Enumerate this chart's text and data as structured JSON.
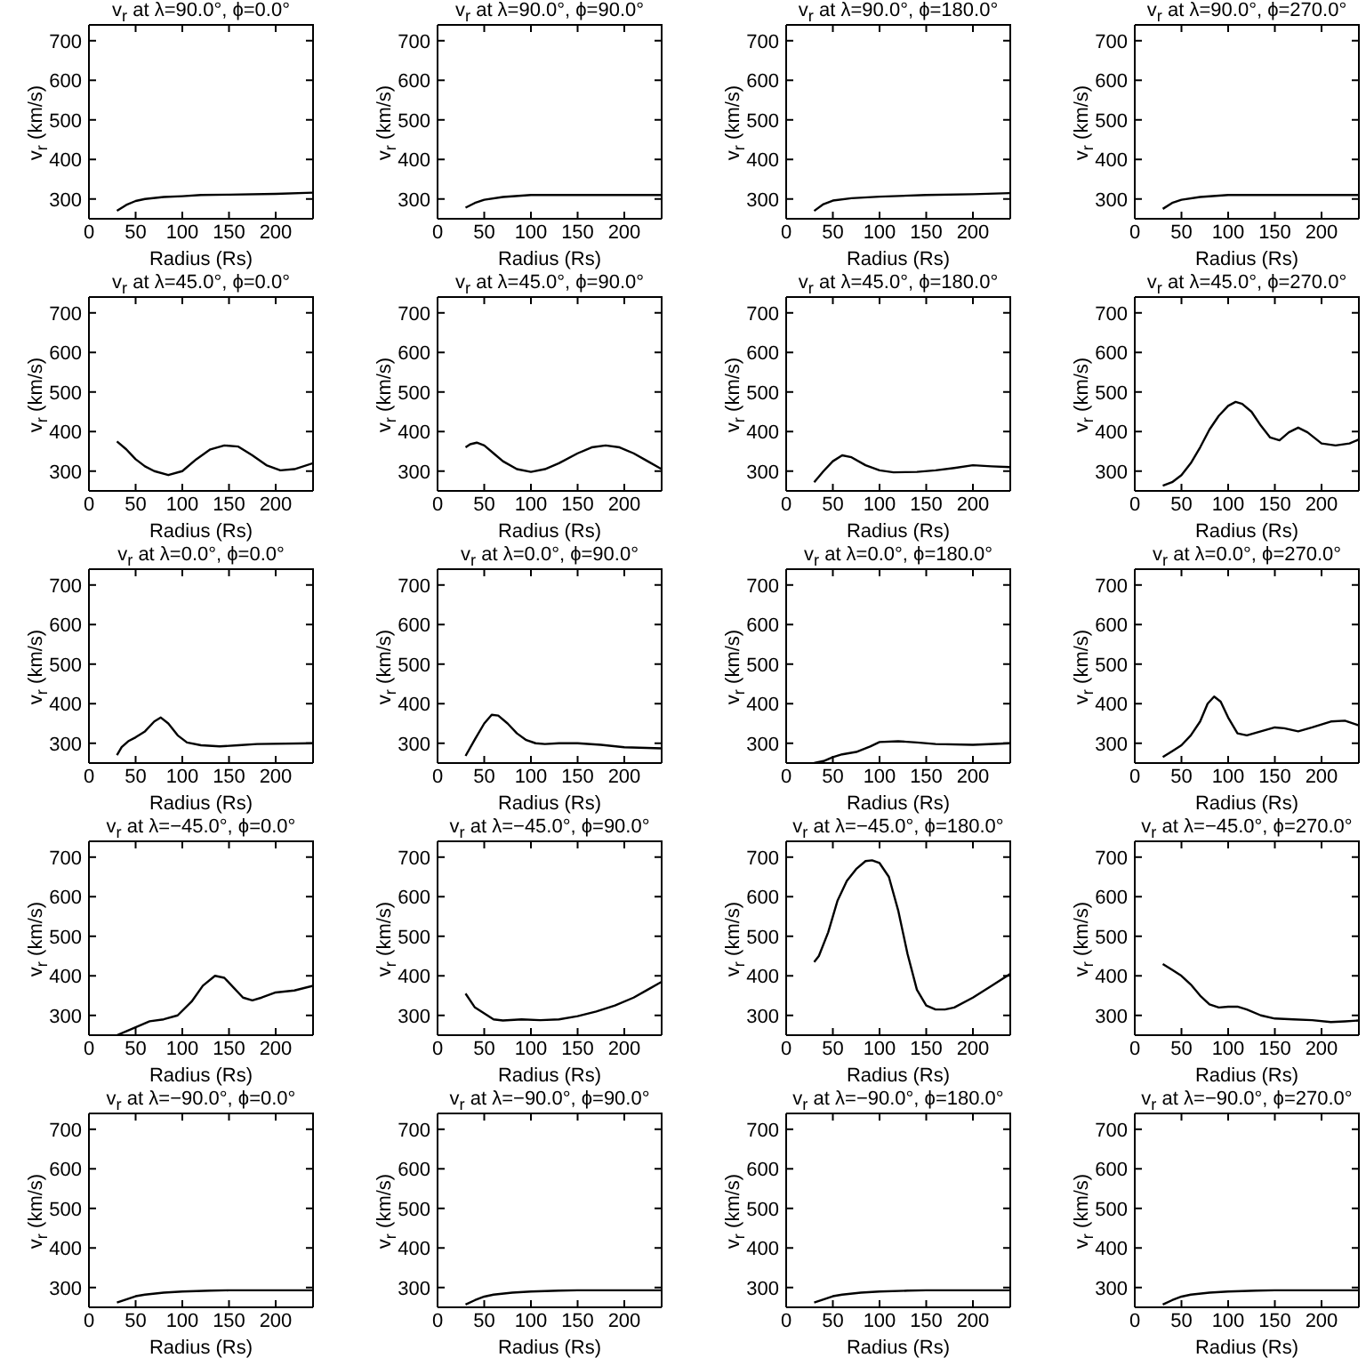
{
  "chart_data": [
    {
      "type": "line",
      "title": "v$_{r}$ at λ=90.0°, ϕ=0.0°",
      "xlabel": "Radius (Rs)",
      "ylabel": "v$_{r}$ (km/s)",
      "color": "#000000",
      "xlim": [
        0,
        240
      ],
      "ylim": [
        250,
        740
      ],
      "xticks": [
        0,
        50,
        100,
        150,
        200
      ],
      "yticks": [
        300,
        400,
        500,
        600,
        700
      ],
      "x": [
        30,
        40,
        50,
        60,
        80,
        100,
        120,
        150,
        200,
        240
      ],
      "values": [
        270,
        285,
        295,
        300,
        305,
        307,
        310,
        311,
        313,
        316
      ]
    },
    {
      "type": "line",
      "title": "v$_{r}$ at λ=90.0°, ϕ=90.0°",
      "xlabel": "Radius (Rs)",
      "ylabel": "v$_{r}$ (km/s)",
      "color": "#000000",
      "xlim": [
        0,
        240
      ],
      "ylim": [
        250,
        740
      ],
      "xticks": [
        0,
        50,
        100,
        150,
        200
      ],
      "yticks": [
        300,
        400,
        500,
        600,
        700
      ],
      "x": [
        30,
        40,
        50,
        70,
        100,
        150,
        240
      ],
      "values": [
        278,
        290,
        298,
        305,
        310,
        310,
        310
      ]
    },
    {
      "type": "line",
      "title": "v$_{r}$ at λ=90.0°, ϕ=180.0°",
      "xlabel": "Radius (Rs)",
      "ylabel": "v$_{r}$ (km/s)",
      "color": "#000000",
      "xlim": [
        0,
        240
      ],
      "ylim": [
        250,
        740
      ],
      "xticks": [
        0,
        50,
        100,
        150,
        200
      ],
      "yticks": [
        300,
        400,
        500,
        600,
        700
      ],
      "x": [
        30,
        40,
        50,
        70,
        100,
        150,
        200,
        240
      ],
      "values": [
        270,
        287,
        296,
        302,
        306,
        310,
        312,
        315
      ]
    },
    {
      "type": "line",
      "title": "v$_{r}$ at λ=90.0°, ϕ=270.0°",
      "xlabel": "Radius (Rs)",
      "ylabel": "v$_{r}$ (km/s)",
      "color": "#000000",
      "xlim": [
        0,
        240
      ],
      "ylim": [
        250,
        740
      ],
      "xticks": [
        0,
        50,
        100,
        150,
        200
      ],
      "yticks": [
        300,
        400,
        500,
        600,
        700
      ],
      "x": [
        30,
        40,
        50,
        70,
        100,
        240
      ],
      "values": [
        275,
        290,
        298,
        305,
        310,
        310
      ]
    },
    {
      "type": "line",
      "title": "v$_{r}$ at λ=45.0°, ϕ=0.0°",
      "xlabel": "Radius (Rs)",
      "ylabel": "v$_{r}$ (km/s)",
      "color": "#000000",
      "xlim": [
        0,
        240
      ],
      "ylim": [
        250,
        740
      ],
      "xticks": [
        0,
        50,
        100,
        150,
        200
      ],
      "yticks": [
        300,
        400,
        500,
        600,
        700
      ],
      "x": [
        30,
        40,
        50,
        60,
        70,
        85,
        100,
        115,
        130,
        145,
        160,
        175,
        190,
        205,
        220,
        240
      ],
      "values": [
        375,
        355,
        330,
        312,
        300,
        290,
        300,
        330,
        355,
        365,
        362,
        340,
        315,
        302,
        305,
        320
      ]
    },
    {
      "type": "line",
      "title": "v$_{r}$ at λ=45.0°, ϕ=90.0°",
      "xlabel": "Radius (Rs)",
      "ylabel": "v$_{r}$ (km/s)",
      "color": "#000000",
      "xlim": [
        0,
        240
      ],
      "ylim": [
        250,
        740
      ],
      "xticks": [
        0,
        50,
        100,
        150,
        200
      ],
      "yticks": [
        300,
        400,
        500,
        600,
        700
      ],
      "x": [
        30,
        35,
        42,
        50,
        60,
        70,
        85,
        100,
        115,
        130,
        150,
        165,
        180,
        195,
        210,
        225,
        240
      ],
      "values": [
        360,
        368,
        372,
        365,
        345,
        325,
        305,
        298,
        305,
        320,
        345,
        360,
        365,
        360,
        345,
        325,
        305
      ]
    },
    {
      "type": "line",
      "title": "v$_{r}$ at λ=45.0°, ϕ=180.0°",
      "xlabel": "Radius (Rs)",
      "ylabel": "v$_{r}$ (km/s)",
      "color": "#000000",
      "xlim": [
        0,
        240
      ],
      "ylim": [
        250,
        740
      ],
      "xticks": [
        0,
        50,
        100,
        150,
        200
      ],
      "yticks": [
        300,
        400,
        500,
        600,
        700
      ],
      "x": [
        30,
        40,
        50,
        60,
        70,
        85,
        100,
        115,
        140,
        160,
        180,
        200,
        220,
        240
      ],
      "values": [
        272,
        300,
        325,
        340,
        335,
        315,
        302,
        297,
        298,
        302,
        308,
        315,
        312,
        310
      ]
    },
    {
      "type": "line",
      "title": "v$_{r}$ at λ=45.0°, ϕ=270.0°",
      "xlabel": "Radius (Rs)",
      "ylabel": "v$_{r}$ (km/s)",
      "color": "#000000",
      "xlim": [
        0,
        240
      ],
      "ylim": [
        250,
        740
      ],
      "xticks": [
        0,
        50,
        100,
        150,
        200
      ],
      "yticks": [
        300,
        400,
        500,
        600,
        700
      ],
      "x": [
        30,
        40,
        50,
        60,
        70,
        80,
        90,
        100,
        108,
        115,
        125,
        135,
        145,
        155,
        165,
        175,
        185,
        200,
        215,
        230,
        240
      ],
      "values": [
        263,
        272,
        290,
        320,
        360,
        405,
        440,
        465,
        475,
        470,
        450,
        415,
        385,
        378,
        398,
        410,
        398,
        370,
        365,
        370,
        380
      ]
    },
    {
      "type": "line",
      "title": "v$_{r}$ at λ=0.0°, ϕ=0.0°",
      "xlabel": "Radius (Rs)",
      "ylabel": "v$_{r}$ (km/s)",
      "color": "#000000",
      "xlim": [
        0,
        240
      ],
      "ylim": [
        250,
        740
      ],
      "xticks": [
        0,
        50,
        100,
        150,
        200
      ],
      "yticks": [
        300,
        400,
        500,
        600,
        700
      ],
      "x": [
        30,
        35,
        42,
        50,
        60,
        70,
        77,
        85,
        95,
        105,
        120,
        140,
        160,
        180,
        240
      ],
      "values": [
        270,
        290,
        305,
        315,
        330,
        355,
        365,
        350,
        320,
        302,
        295,
        292,
        295,
        298,
        300
      ]
    },
    {
      "type": "line",
      "title": "v$_{r}$ at λ=0.0°, ϕ=90.0°",
      "xlabel": "Radius (Rs)",
      "ylabel": "v$_{r}$ (km/s)",
      "color": "#000000",
      "xlim": [
        0,
        240
      ],
      "ylim": [
        250,
        740
      ],
      "xticks": [
        0,
        50,
        100,
        150,
        200
      ],
      "yticks": [
        300,
        400,
        500,
        600,
        700
      ],
      "x": [
        30,
        40,
        50,
        58,
        65,
        75,
        85,
        95,
        105,
        115,
        130,
        150,
        175,
        200,
        240
      ],
      "values": [
        268,
        310,
        350,
        372,
        370,
        350,
        325,
        308,
        300,
        298,
        300,
        300,
        296,
        290,
        287
      ]
    },
    {
      "type": "line",
      "title": "v$_{r}$ at λ=0.0°, ϕ=180.0°",
      "xlabel": "Radius (Rs)",
      "ylabel": "v$_{r}$ (km/s)",
      "color": "#000000",
      "xlim": [
        0,
        240
      ],
      "ylim": [
        250,
        740
      ],
      "xticks": [
        0,
        50,
        100,
        150,
        200
      ],
      "yticks": [
        300,
        400,
        500,
        600,
        700
      ],
      "x": [
        30,
        40,
        50,
        60,
        75,
        90,
        100,
        120,
        140,
        160,
        200,
        240
      ],
      "values": [
        250,
        255,
        265,
        272,
        278,
        292,
        303,
        305,
        302,
        298,
        296,
        300
      ]
    },
    {
      "type": "line",
      "title": "v$_{r}$ at λ=0.0°, ϕ=270.0°",
      "xlabel": "Radius (Rs)",
      "ylabel": "v$_{r}$ (km/s)",
      "color": "#000000",
      "xlim": [
        0,
        240
      ],
      "ylim": [
        250,
        740
      ],
      "xticks": [
        0,
        50,
        100,
        150,
        200
      ],
      "yticks": [
        300,
        400,
        500,
        600,
        700
      ],
      "x": [
        30,
        40,
        50,
        60,
        70,
        78,
        85,
        92,
        100,
        110,
        120,
        135,
        150,
        160,
        175,
        190,
        210,
        225,
        240
      ],
      "values": [
        265,
        280,
        295,
        320,
        355,
        400,
        418,
        405,
        365,
        325,
        320,
        330,
        340,
        338,
        330,
        340,
        355,
        357,
        345
      ]
    },
    {
      "type": "line",
      "title": "v$_{r}$ at λ=−45.0°, ϕ=0.0°",
      "xlabel": "Radius (Rs)",
      "ylabel": "v$_{r}$ (km/s)",
      "color": "#000000",
      "xlim": [
        0,
        240
      ],
      "ylim": [
        250,
        740
      ],
      "xticks": [
        0,
        50,
        100,
        150,
        200
      ],
      "yticks": [
        300,
        400,
        500,
        600,
        700
      ],
      "x": [
        30,
        40,
        55,
        65,
        80,
        95,
        110,
        122,
        135,
        145,
        155,
        165,
        175,
        185,
        200,
        220,
        240
      ],
      "values": [
        250,
        260,
        275,
        285,
        290,
        300,
        335,
        375,
        400,
        395,
        370,
        345,
        338,
        345,
        358,
        363,
        375
      ]
    },
    {
      "type": "line",
      "title": "v$_{r}$ at λ=−45.0°, ϕ=90.0°",
      "xlabel": "Radius (Rs)",
      "ylabel": "v$_{r}$ (km/s)",
      "color": "#000000",
      "xlim": [
        0,
        240
      ],
      "ylim": [
        250,
        740
      ],
      "xticks": [
        0,
        50,
        100,
        150,
        200
      ],
      "yticks": [
        300,
        400,
        500,
        600,
        700
      ],
      "x": [
        30,
        40,
        50,
        60,
        70,
        90,
        110,
        130,
        150,
        170,
        190,
        210,
        225,
        240
      ],
      "values": [
        355,
        320,
        305,
        290,
        287,
        290,
        288,
        290,
        298,
        310,
        325,
        345,
        365,
        385
      ]
    },
    {
      "type": "line",
      "title": "v$_{r}$ at λ=−45.0°, ϕ=180.0°",
      "xlabel": "Radius (Rs)",
      "ylabel": "v$_{r}$ (km/s)",
      "color": "#000000",
      "xlim": [
        0,
        240
      ],
      "ylim": [
        250,
        740
      ],
      "xticks": [
        0,
        50,
        100,
        150,
        200
      ],
      "yticks": [
        300,
        400,
        500,
        600,
        700
      ],
      "x": [
        30,
        35,
        45,
        55,
        65,
        75,
        85,
        92,
        100,
        110,
        120,
        130,
        140,
        150,
        160,
        170,
        180,
        200,
        220,
        240
      ],
      "values": [
        435,
        450,
        510,
        590,
        640,
        670,
        690,
        692,
        685,
        650,
        565,
        455,
        365,
        325,
        315,
        315,
        320,
        345,
        375,
        405
      ]
    },
    {
      "type": "line",
      "title": "v$_{r}$ at λ=−45.0°, ϕ=270.0°",
      "xlabel": "Radius (Rs)",
      "ylabel": "v$_{r}$ (km/s)",
      "color": "#000000",
      "xlim": [
        0,
        240
      ],
      "ylim": [
        250,
        740
      ],
      "xticks": [
        0,
        50,
        100,
        150,
        200
      ],
      "yticks": [
        300,
        400,
        500,
        600,
        700
      ],
      "x": [
        30,
        40,
        50,
        60,
        70,
        80,
        90,
        100,
        110,
        120,
        135,
        150,
        170,
        190,
        210,
        225,
        240
      ],
      "values": [
        430,
        415,
        400,
        378,
        350,
        328,
        320,
        322,
        322,
        315,
        300,
        292,
        290,
        288,
        283,
        285,
        287
      ]
    },
    {
      "type": "line",
      "title": "v$_{r}$ at λ=−90.0°, ϕ=0.0°",
      "xlabel": "Radius (Rs)",
      "ylabel": "v$_{r}$ (km/s)",
      "color": "#000000",
      "xlim": [
        0,
        240
      ],
      "ylim": [
        250,
        740
      ],
      "xticks": [
        0,
        50,
        100,
        150,
        200
      ],
      "yticks": [
        300,
        400,
        500,
        600,
        700
      ],
      "x": [
        30,
        40,
        50,
        60,
        80,
        100,
        130,
        150,
        240
      ],
      "values": [
        262,
        270,
        278,
        282,
        287,
        290,
        292,
        293,
        293
      ]
    },
    {
      "type": "line",
      "title": "v$_{r}$ at λ=−90.0°, ϕ=90.0°",
      "xlabel": "Radius (Rs)",
      "ylabel": "v$_{r}$ (km/s)",
      "color": "#000000",
      "xlim": [
        0,
        240
      ],
      "ylim": [
        250,
        740
      ],
      "xticks": [
        0,
        50,
        100,
        150,
        200
      ],
      "yticks": [
        300,
        400,
        500,
        600,
        700
      ],
      "x": [
        30,
        40,
        50,
        60,
        80,
        100,
        130,
        150,
        240
      ],
      "values": [
        257,
        268,
        277,
        282,
        287,
        290,
        292,
        293,
        293
      ]
    },
    {
      "type": "line",
      "title": "v$_{r}$ at λ=−90.0°, ϕ=180.0°",
      "xlabel": "Radius (Rs)",
      "ylabel": "v$_{r}$ (km/s)",
      "color": "#000000",
      "xlim": [
        0,
        240
      ],
      "ylim": [
        250,
        740
      ],
      "xticks": [
        0,
        50,
        100,
        150,
        200
      ],
      "yticks": [
        300,
        400,
        500,
        600,
        700
      ],
      "x": [
        30,
        40,
        50,
        60,
        80,
        100,
        130,
        150,
        240
      ],
      "values": [
        262,
        270,
        278,
        282,
        287,
        290,
        292,
        293,
        293
      ]
    },
    {
      "type": "line",
      "title": "v$_{r}$ at λ=−90.0°, ϕ=270.0°",
      "xlabel": "Radius (Rs)",
      "ylabel": "v$_{r}$ (km/s)",
      "color": "#000000",
      "xlim": [
        0,
        240
      ],
      "ylim": [
        250,
        740
      ],
      "xticks": [
        0,
        50,
        100,
        150,
        200
      ],
      "yticks": [
        300,
        400,
        500,
        600,
        700
      ],
      "x": [
        30,
        40,
        50,
        60,
        80,
        100,
        130,
        150,
        240
      ],
      "values": [
        257,
        268,
        277,
        282,
        287,
        290,
        292,
        293,
        293
      ]
    }
  ]
}
